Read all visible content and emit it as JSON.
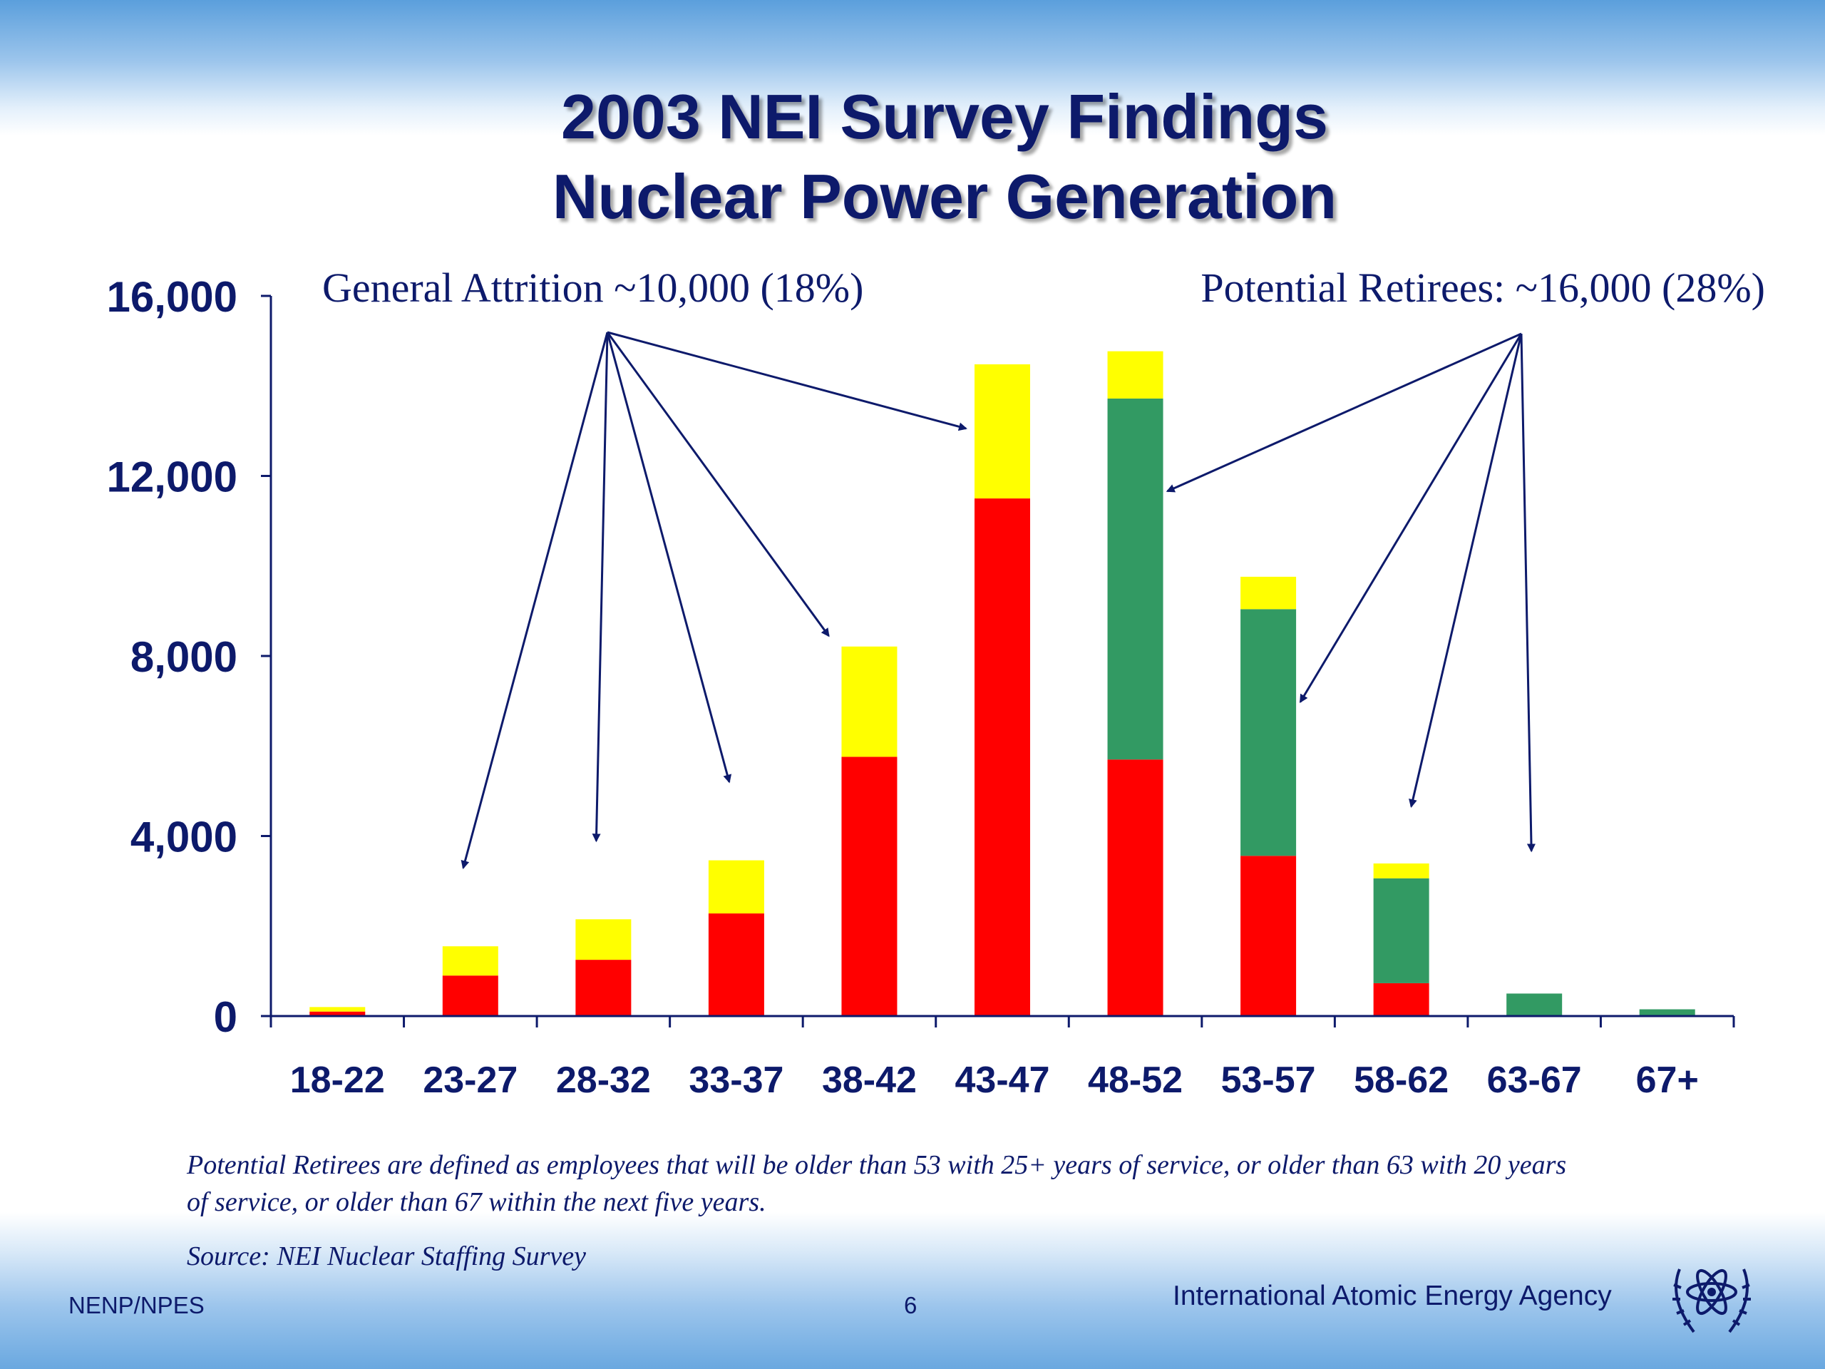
{
  "slide": {
    "title_line1": "2003 NEI Survey Findings",
    "title_line2": "Nuclear Power Generation",
    "note": "Potential  Retirees are defined as employees that will be older than 53 with 25+ years of service, or older than 63 with 20 years of service, or older than 67 within the next five years.",
    "source": "Source: NEI Nuclear Staffing Survey",
    "footer_left": "NENP/NPES",
    "page_number": "6",
    "organization": "International Atomic Energy Agency",
    "logo_icon": "iaea-atom-laurel-icon"
  },
  "chart_data": {
    "type": "bar",
    "stacked": true,
    "categories": [
      "18-22",
      "23-27",
      "28-32",
      "33-37",
      "38-42",
      "43-47",
      "48-52",
      "53-57",
      "58-62",
      "63-67",
      "67+"
    ],
    "series": [
      {
        "color": "#ff0000",
        "values": [
          100,
          900,
          1250,
          2280,
          5760,
          11500,
          5700,
          3560,
          730,
          0,
          0
        ]
      },
      {
        "color": "#329a63",
        "values": [
          0,
          0,
          0,
          0,
          0,
          0,
          8020,
          5480,
          2330,
          500,
          150
        ]
      },
      {
        "color": "#ffff00",
        "values": [
          100,
          650,
          900,
          1180,
          2450,
          2980,
          1050,
          720,
          330,
          0,
          0
        ]
      }
    ],
    "ylim": [
      0,
      16000
    ],
    "yticks": [
      0,
      4000,
      8000,
      12000,
      16000
    ],
    "ytick_labels": [
      "0",
      "4,000",
      "8,000",
      "12,000",
      "16,000"
    ],
    "grid": false,
    "annotations": [
      {
        "text": "General Attrition ~10,000 (18%)",
        "points_to": [
          "23-27",
          "28-32",
          "33-37",
          "38-42",
          "43-47"
        ]
      },
      {
        "text": "Potential Retirees: ~16,000 (28%)",
        "points_to": [
          "48-52",
          "53-57",
          "58-62",
          "63-67"
        ]
      }
    ],
    "colors": {
      "axis": "#0d1a6b",
      "text": "#0d1a6b",
      "arrow": "#0d1a6b"
    }
  }
}
